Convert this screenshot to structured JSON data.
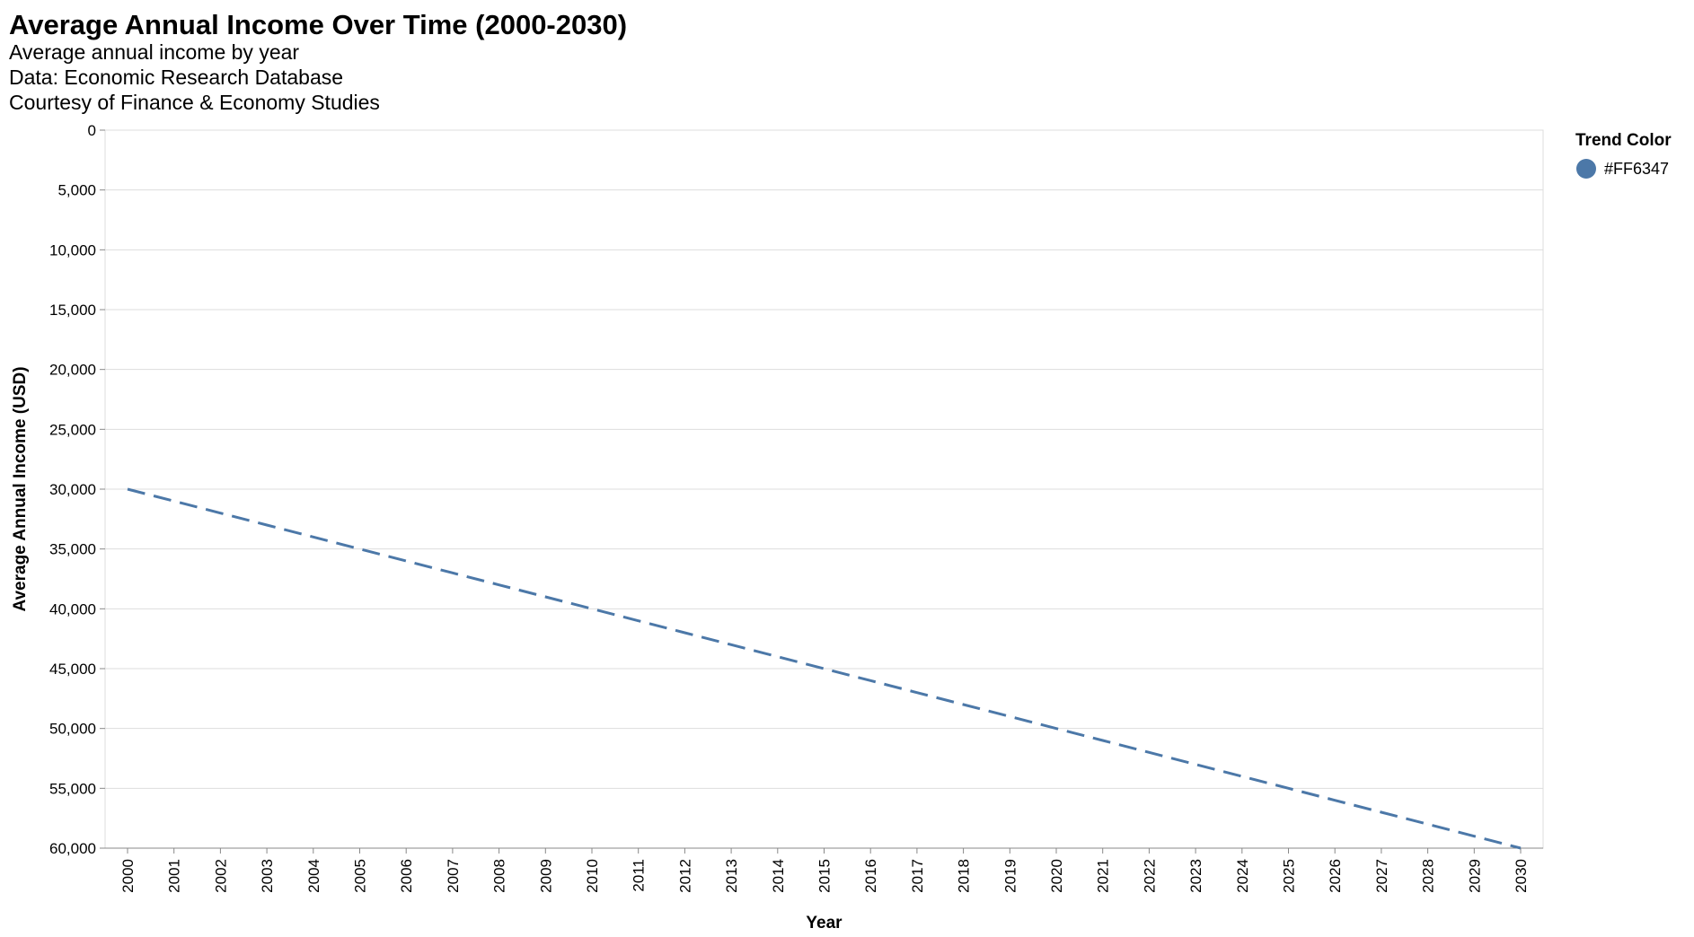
{
  "chart_data": {
    "type": "line",
    "title": "Average Annual Income Over Time (2000-2030)",
    "subtitle": [
      "Average annual income by year",
      "Data: Economic Research Database",
      "Courtesy of Finance & Economy Studies"
    ],
    "xlabel": "Year",
    "ylabel": "Average Annual Income (USD)",
    "x": [
      2000,
      2001,
      2002,
      2003,
      2004,
      2005,
      2006,
      2007,
      2008,
      2009,
      2010,
      2011,
      2012,
      2013,
      2014,
      2015,
      2016,
      2017,
      2018,
      2019,
      2020,
      2021,
      2022,
      2023,
      2024,
      2025,
      2026,
      2027,
      2028,
      2029,
      2030
    ],
    "series": [
      {
        "name": "#FF6347",
        "values": [
          30000,
          31000,
          32000,
          33000,
          34000,
          35000,
          36000,
          37000,
          38000,
          39000,
          40000,
          41000,
          42000,
          43000,
          44000,
          45000,
          46000,
          47000,
          48000,
          49000,
          50000,
          51000,
          52000,
          53000,
          54000,
          55000,
          56000,
          57000,
          58000,
          59000,
          60000
        ],
        "color": "#4C78A8",
        "line_style": "dashed"
      }
    ],
    "y_ticks": [
      "0",
      "5,000",
      "10,000",
      "15,000",
      "20,000",
      "25,000",
      "30,000",
      "35,000",
      "40,000",
      "45,000",
      "50,000",
      "55,000",
      "60,000"
    ],
    "x_ticks": [
      "2000",
      "2001",
      "2002",
      "2003",
      "2004",
      "2005",
      "2006",
      "2007",
      "2008",
      "2009",
      "2010",
      "2011",
      "2012",
      "2013",
      "2014",
      "2015",
      "2016",
      "2017",
      "2018",
      "2019",
      "2020",
      "2021",
      "2022",
      "2023",
      "2024",
      "2025",
      "2026",
      "2027",
      "2028",
      "2029",
      "2030"
    ],
    "xlim": [
      2000,
      2030
    ],
    "ylim": [
      0,
      60000
    ],
    "y_axis_reversed": true,
    "grid": true,
    "legend": {
      "title": "Trend Color",
      "position": "top-right",
      "entries": [
        {
          "label": "#FF6347",
          "color": "#4C78A8",
          "symbol": "circle"
        }
      ]
    }
  }
}
